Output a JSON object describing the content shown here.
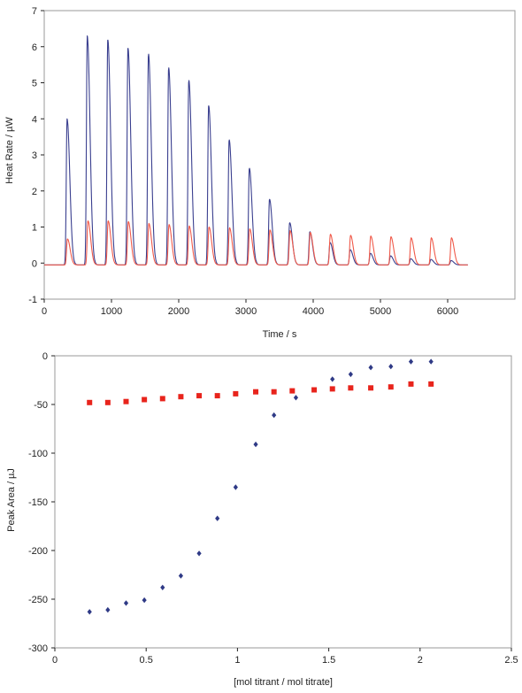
{
  "colors": {
    "blue_series": "#3a3f8f",
    "red_series": "#f05a4a",
    "blue_marker": "#2f3a86",
    "red_marker": "#e8241c",
    "frame": "#9a9a9a",
    "axis": "#222222"
  },
  "chart_data": [
    {
      "type": "line",
      "title": "",
      "xlabel": "Time / s",
      "ylabel": "Heat Rate / µW",
      "xlim": [
        0,
        7000
      ],
      "ylim": [
        -1,
        7
      ],
      "x_ticks": [
        0,
        1000,
        2000,
        3000,
        4000,
        5000,
        6000
      ],
      "y_ticks": [
        -1,
        0,
        1,
        2,
        3,
        4,
        5,
        6,
        7
      ],
      "x_tick_labels": [
        "0",
        "1000",
        "2000",
        "3000",
        "4000",
        "5000",
        "6000"
      ],
      "y_tick_labels": [
        "-1",
        "0",
        "1",
        "2",
        "3",
        "4",
        "5",
        "6",
        "7"
      ],
      "grid": false,
      "baseline": -0.05,
      "x_end": 6300,
      "series": [
        {
          "color": "#3a3f8f",
          "peak_times": [
            340,
            640,
            945,
            1245,
            1550,
            1850,
            2150,
            2445,
            2750,
            3050,
            3350,
            3650,
            3950,
            4250,
            4550,
            4850,
            5150,
            5450,
            5750,
            6050
          ],
          "peak_heights": [
            4.05,
            6.35,
            6.25,
            6.02,
            5.85,
            5.47,
            5.12,
            4.42,
            3.47,
            2.68,
            1.82,
            1.17,
            0.92,
            0.62,
            0.42,
            0.32,
            0.25,
            0.17,
            0.15,
            0.12
          ]
        },
        {
          "color": "#f05a4a",
          "peak_times": [
            345,
            650,
            950,
            1250,
            1555,
            1855,
            2155,
            2450,
            2755,
            3055,
            3355,
            3655,
            3955,
            4255,
            4555,
            4855,
            5155,
            5455,
            5755,
            6055
          ],
          "peak_heights": [
            0.72,
            1.22,
            1.22,
            1.2,
            1.15,
            1.12,
            1.08,
            1.05,
            1.03,
            1.0,
            0.97,
            0.95,
            0.9,
            0.85,
            0.82,
            0.8,
            0.78,
            0.75,
            0.75,
            0.75
          ]
        }
      ]
    },
    {
      "type": "scatter",
      "title": "",
      "xlabel": "[mol titrant / mol titrate]",
      "ylabel": "Peak Area / µJ",
      "xlim": [
        0,
        2.5
      ],
      "ylim": [
        -300,
        0
      ],
      "x_ticks": [
        0,
        0.5,
        1,
        1.5,
        2,
        2.5
      ],
      "y_ticks": [
        -300,
        -250,
        -200,
        -150,
        -100,
        -50,
        0
      ],
      "x_tick_labels": [
        "0",
        "0.5",
        "1",
        "1.5",
        "2",
        "2.5"
      ],
      "y_tick_labels": [
        "-300",
        "-250",
        "-200",
        "-150",
        "-100",
        "-50",
        "0"
      ],
      "grid": false,
      "series": [
        {
          "color": "#2f3a86",
          "marker": "diamond",
          "x": [
            0.19,
            0.29,
            0.39,
            0.49,
            0.59,
            0.69,
            0.79,
            0.89,
            0.99,
            1.1,
            1.2,
            1.32,
            1.52,
            1.62,
            1.73,
            1.84,
            1.95,
            2.06
          ],
          "y": [
            -263,
            -261,
            -254,
            -251,
            -238,
            -226,
            -203,
            -167,
            -135,
            -91,
            -61,
            -43,
            -24,
            -19,
            -12,
            -11,
            -6,
            -6
          ]
        },
        {
          "color": "#e8241c",
          "marker": "square",
          "x": [
            0.19,
            0.29,
            0.39,
            0.49,
            0.59,
            0.69,
            0.79,
            0.89,
            0.99,
            1.1,
            1.2,
            1.3,
            1.42,
            1.52,
            1.62,
            1.73,
            1.84,
            1.95,
            2.06
          ],
          "y": [
            -48,
            -48,
            -47,
            -45,
            -44,
            -42,
            -41,
            -41,
            -39,
            -37,
            -37,
            -36,
            -35,
            -34,
            -33,
            -33,
            -32,
            -29,
            -29
          ]
        }
      ]
    }
  ]
}
